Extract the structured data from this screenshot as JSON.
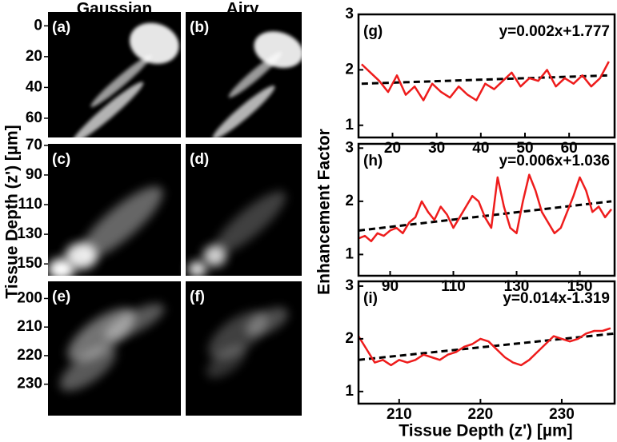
{
  "image_figure": {
    "column_titles": [
      "Gaussian",
      "Airy"
    ],
    "ylabel": "Tissue Depth (z') [µm]",
    "rows": [
      {
        "labels": [
          "(a)",
          "(b)"
        ],
        "ylim": [
          -9,
          72.5
        ],
        "yticks": [
          0,
          20,
          40,
          60
        ]
      },
      {
        "labels": [
          "(c)",
          "(d)"
        ],
        "ylim": [
          69,
          158
        ],
        "yticks": [
          70,
          90,
          110,
          130,
          150
        ]
      },
      {
        "labels": [
          "(e)",
          "(f)"
        ],
        "ylim": [
          194,
          241
        ],
        "yticks": [
          200,
          210,
          220,
          230
        ]
      }
    ]
  },
  "chart_data": [
    {
      "type": "line",
      "panel_label": "(g)",
      "annotation": "y=0.002x+1.777",
      "color": "#ee1c1c",
      "x": [
        13,
        15,
        17,
        19,
        21,
        23,
        25,
        27,
        29,
        31,
        33,
        35,
        37,
        39,
        41,
        43,
        45,
        47,
        49,
        51,
        53,
        55,
        57,
        59,
        61,
        63,
        65,
        67,
        69
      ],
      "values": [
        2.1,
        1.95,
        1.8,
        1.6,
        1.9,
        1.55,
        1.7,
        1.45,
        1.75,
        1.6,
        1.5,
        1.7,
        1.55,
        1.45,
        1.75,
        1.65,
        1.8,
        1.95,
        1.7,
        1.85,
        1.8,
        2.0,
        1.7,
        1.85,
        1.75,
        1.9,
        1.7,
        1.85,
        2.15
      ],
      "trend": {
        "x": [
          13,
          69
        ],
        "values": [
          1.75,
          1.9
        ],
        "color": "#000000"
      },
      "xlim": [
        12.3,
        70.3
      ],
      "xticks": [
        20,
        30,
        40,
        50,
        60
      ],
      "ylim": [
        0.78,
        3
      ],
      "yticks": [
        1,
        2,
        3
      ]
    },
    {
      "type": "line",
      "panel_label": "(h)",
      "annotation": "y=0.006x+1.036",
      "color": "#ee1c1c",
      "ylabel": "Enhancement Factor",
      "x": [
        80,
        82,
        84,
        86,
        88,
        90,
        92,
        94,
        96,
        98,
        100,
        102,
        104,
        106,
        108,
        110,
        112,
        114,
        116,
        118,
        120,
        122,
        124,
        126,
        128,
        130,
        132,
        134,
        136,
        138,
        140,
        142,
        144,
        146,
        148,
        150,
        152,
        154,
        156,
        158,
        160
      ],
      "values": [
        1.3,
        1.35,
        1.25,
        1.4,
        1.35,
        1.45,
        1.5,
        1.4,
        1.6,
        1.7,
        2.0,
        1.8,
        1.65,
        1.9,
        1.75,
        1.5,
        1.7,
        1.9,
        2.1,
        2.0,
        1.7,
        1.5,
        2.45,
        1.9,
        1.5,
        1.4,
        2.0,
        2.5,
        2.2,
        1.8,
        1.6,
        1.4,
        1.5,
        1.8,
        2.1,
        2.45,
        2.2,
        1.8,
        1.9,
        1.7,
        1.85
      ],
      "trend": {
        "x": [
          80,
          160
        ],
        "values": [
          1.45,
          2.0
        ],
        "color": "#000000"
      },
      "xlim": [
        80,
        161
      ],
      "xticks": [
        90,
        110,
        130,
        150
      ],
      "ylim": [
        0.6,
        3.08
      ],
      "yticks": [
        1,
        2,
        3
      ]
    },
    {
      "type": "line",
      "panel_label": "(i)",
      "annotation": "y=0.014x-1.319",
      "color": "#ee1c1c",
      "xlabel": "Tissue Depth (z') [µm]",
      "x": [
        205,
        206,
        207,
        208,
        209,
        210,
        211,
        212,
        213,
        214,
        215,
        216,
        217,
        218,
        219,
        220,
        221,
        222,
        223,
        224,
        225,
        226,
        227,
        228,
        229,
        230,
        231,
        232,
        233,
        234,
        235,
        236
      ],
      "values": [
        2.05,
        1.8,
        1.55,
        1.6,
        1.5,
        1.6,
        1.55,
        1.6,
        1.7,
        1.65,
        1.6,
        1.7,
        1.75,
        1.85,
        1.9,
        2.0,
        1.95,
        1.8,
        1.65,
        1.55,
        1.5,
        1.6,
        1.75,
        1.9,
        2.05,
        2.0,
        1.95,
        2.0,
        2.1,
        2.15,
        2.15,
        2.2
      ],
      "trend": {
        "x": [
          205,
          236.5
        ],
        "values": [
          1.6,
          2.1
        ],
        "color": "#000000"
      },
      "xlim": [
        205,
        236.5
      ],
      "xticks": [
        210,
        220,
        230
      ],
      "ylim": [
        0.77,
        3.09
      ],
      "yticks": [
        1,
        2,
        3
      ]
    }
  ]
}
